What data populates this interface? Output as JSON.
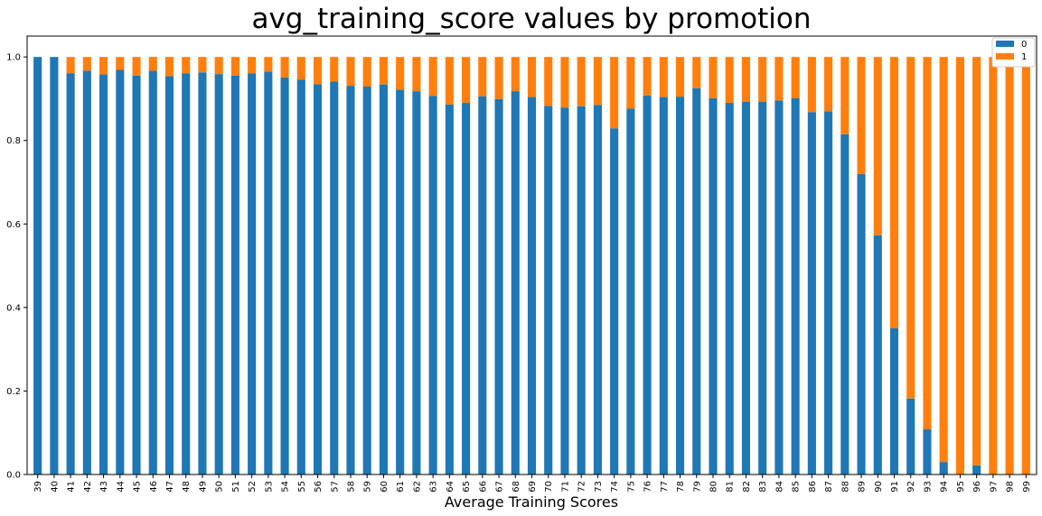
{
  "chart_data": {
    "type": "bar",
    "stacked": true,
    "title": "avg_training_score values by promotion",
    "xlabel": "Average Training Scores",
    "ylabel": "",
    "ylim": [
      0,
      1.05
    ],
    "yticks": [
      "0.0",
      "0.2",
      "0.4",
      "0.6",
      "0.8",
      "1.0"
    ],
    "grid": false,
    "legend_position": "top-right",
    "categories": [
      "39",
      "40",
      "41",
      "42",
      "43",
      "44",
      "45",
      "46",
      "47",
      "48",
      "49",
      "50",
      "51",
      "52",
      "53",
      "54",
      "55",
      "56",
      "57",
      "58",
      "59",
      "60",
      "61",
      "62",
      "63",
      "64",
      "65",
      "66",
      "67",
      "68",
      "69",
      "70",
      "71",
      "72",
      "73",
      "74",
      "75",
      "76",
      "77",
      "78",
      "79",
      "80",
      "81",
      "82",
      "83",
      "84",
      "85",
      "86",
      "87",
      "88",
      "89",
      "90",
      "91",
      "92",
      "93",
      "94",
      "95",
      "96",
      "97",
      "98",
      "99"
    ],
    "series": [
      {
        "name": "0",
        "color": "#1f77b4",
        "values": [
          1.0,
          1.0,
          0.961,
          0.967,
          0.958,
          0.969,
          0.955,
          0.967,
          0.954,
          0.961,
          0.963,
          0.959,
          0.955,
          0.961,
          0.965,
          0.951,
          0.946,
          0.935,
          0.941,
          0.931,
          0.929,
          0.934,
          0.922,
          0.918,
          0.907,
          0.886,
          0.89,
          0.906,
          0.899,
          0.918,
          0.904,
          0.883,
          0.879,
          0.882,
          0.885,
          0.829,
          0.876,
          0.908,
          0.904,
          0.905,
          0.925,
          0.901,
          0.89,
          0.893,
          0.893,
          0.896,
          0.901,
          0.868,
          0.87,
          0.815,
          0.72,
          0.573,
          0.35,
          0.182,
          0.108,
          0.03,
          0.0,
          0.022,
          0.0,
          0.0,
          0.0
        ]
      },
      {
        "name": "1",
        "color": "#ff7f0e",
        "values": [
          0.0,
          0.0,
          0.039,
          0.033,
          0.042,
          0.031,
          0.045,
          0.033,
          0.046,
          0.039,
          0.037,
          0.041,
          0.045,
          0.039,
          0.035,
          0.049,
          0.054,
          0.065,
          0.059,
          0.069,
          0.071,
          0.066,
          0.078,
          0.082,
          0.093,
          0.114,
          0.11,
          0.094,
          0.101,
          0.082,
          0.096,
          0.117,
          0.121,
          0.118,
          0.115,
          0.171,
          0.124,
          0.092,
          0.096,
          0.095,
          0.075,
          0.099,
          0.11,
          0.107,
          0.107,
          0.104,
          0.099,
          0.132,
          0.13,
          0.185,
          0.28,
          0.427,
          0.65,
          0.818,
          0.892,
          0.97,
          1.0,
          0.978,
          1.0,
          1.0,
          1.0
        ]
      }
    ]
  }
}
